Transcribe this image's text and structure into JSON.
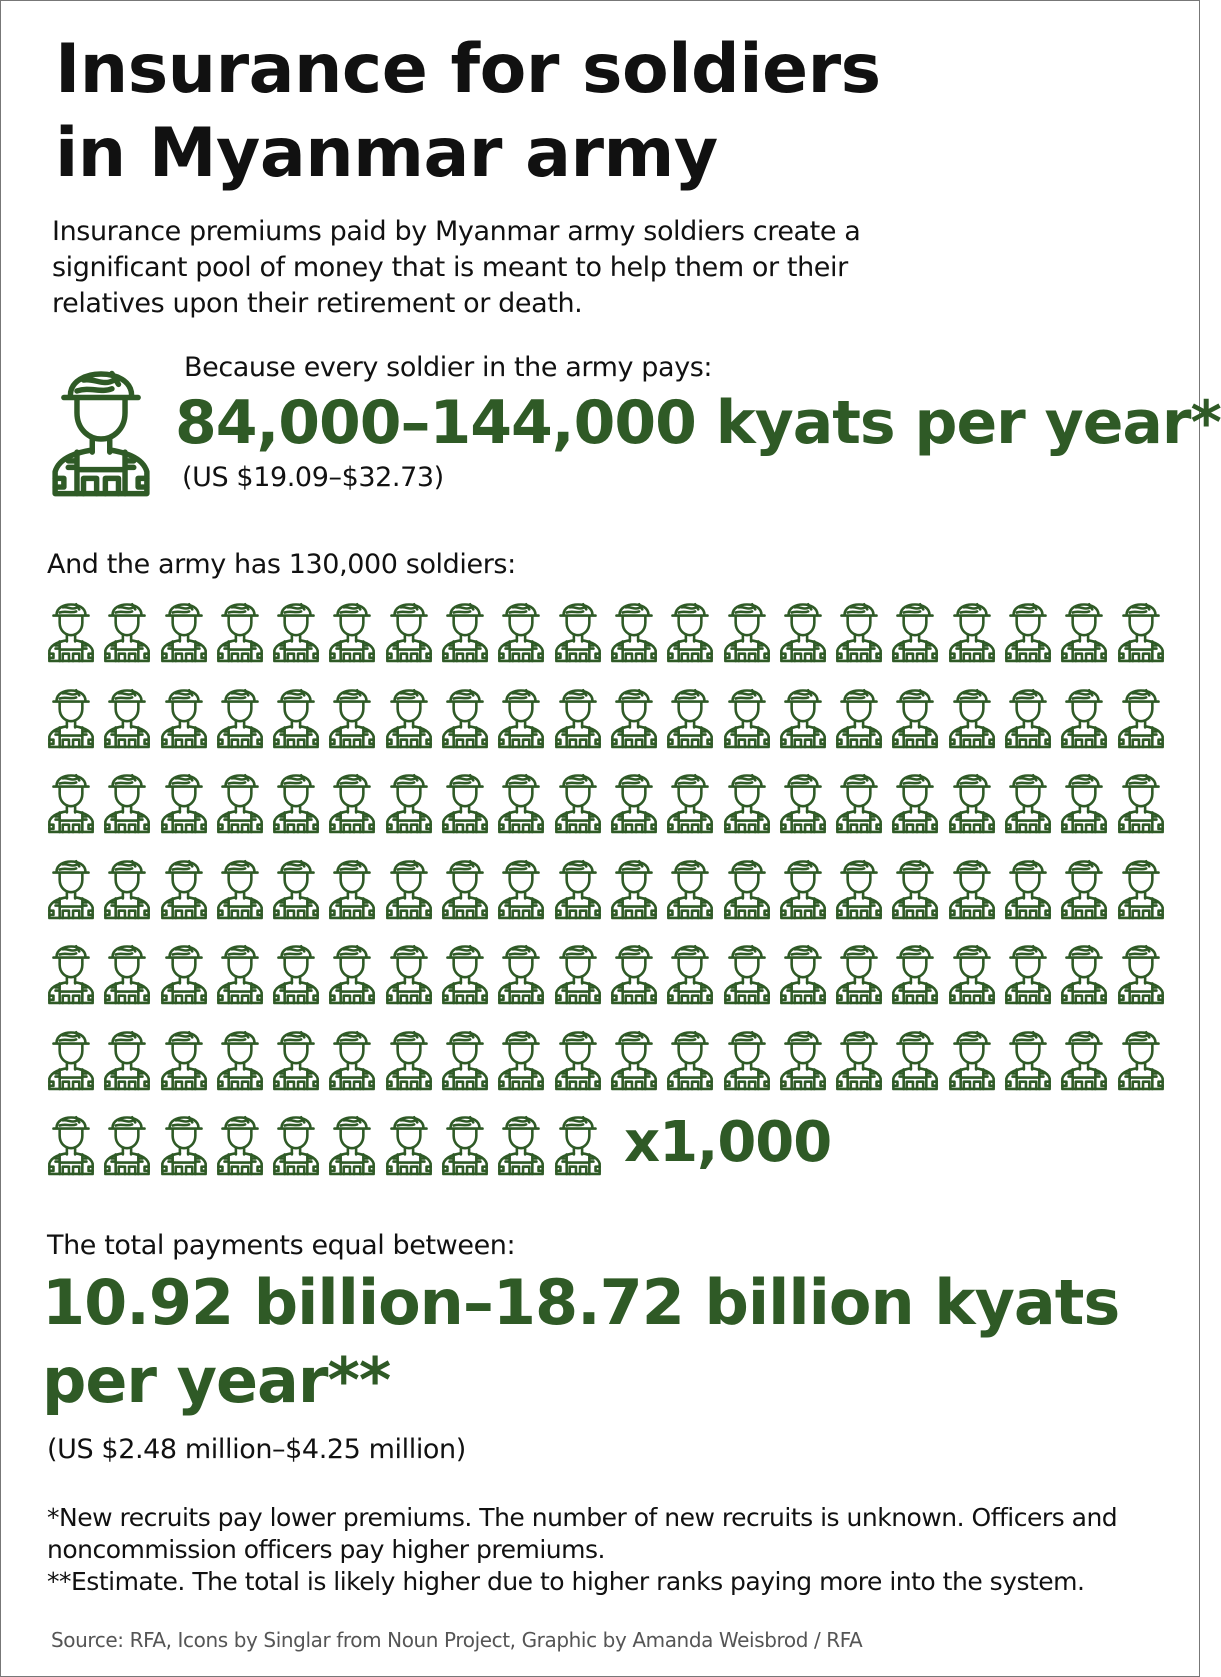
{
  "title": "Insurance for soldiers in Myanmar army",
  "title_line1": "Insurance for soldiers",
  "title_line2": "in Myanmar army",
  "intro": "Insurance premiums paid by Myanmar army soldiers create a significant pool of money that is meant to help them or their relatives upon their retirement or death.",
  "per_soldier": {
    "lead": "Because every soldier in the army pays:",
    "amount": "84,000–144,000 kyats per year*",
    "usd": "(US $19.09–$32.73)",
    "icon": "soldier-icon"
  },
  "army": {
    "lead": "And the army has 130,000 soldiers:",
    "icon_count": 130,
    "icons_per_row": 20,
    "multiplier": "x1,000"
  },
  "total": {
    "lead": "The total payments equal between:",
    "amount": "10.92 billion–18.72 billion kyats per year**",
    "usd": "(US $2.48 million–$4.25 million)"
  },
  "notes": [
    "*New recruits pay lower premiums. The number of new recruits is unknown. Officers and noncommission officers pay higher premiums.",
    "**Estimate. The total is likely higher due to higher ranks paying more into the system."
  ],
  "source": "Source: RFA, Icons by Singlar from Noun Project, Graphic by Amanda Weisbrod / RFA",
  "colors": {
    "accent": "#2f5a26",
    "text": "#111111",
    "source": "#555555"
  }
}
